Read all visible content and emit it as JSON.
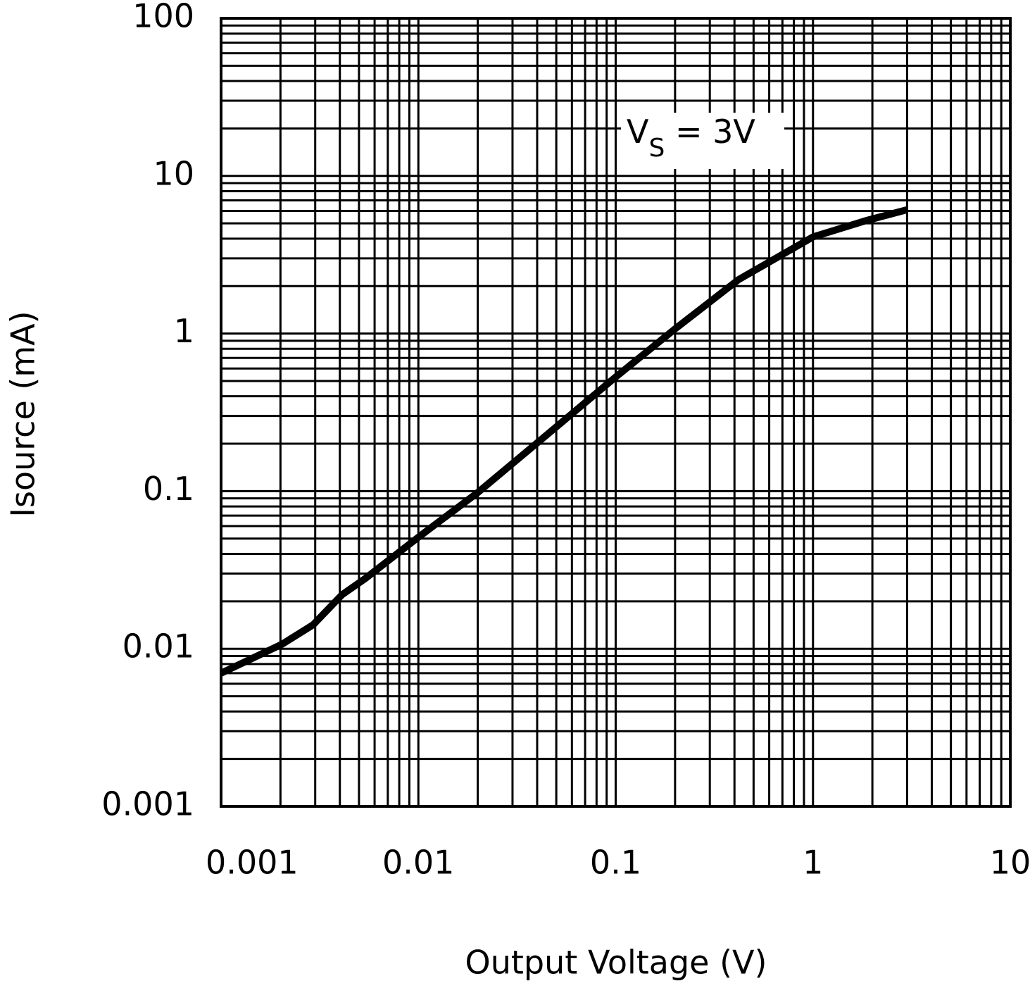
{
  "chart_data": {
    "type": "line",
    "x_label": "Output Voltage (V)",
    "y_label": "Isource (mA)",
    "annotation": {
      "main": "V",
      "sub": "S",
      "rest": " = 3V"
    },
    "log_x": true,
    "log_y": true,
    "grid": true,
    "minor_grid": true,
    "xlim": [
      0.001,
      10
    ],
    "xticks": [
      0.001,
      0.01,
      0.1,
      1,
      10
    ],
    "ylim": [
      0.001,
      100
    ],
    "yticks": [
      0.001,
      0.01,
      0.1,
      1,
      10,
      100
    ],
    "series": [
      {
        "name": "Isource",
        "color": "#000000",
        "x": [
          0.001,
          0.00204,
          0.00293,
          0.0041,
          0.0054,
          0.01,
          0.02,
          0.039,
          0.1,
          0.2,
          0.42,
          1,
          1.85,
          3
        ],
        "values": [
          0.007,
          0.0107,
          0.0142,
          0.022,
          0.028,
          0.051,
          0.098,
          0.197,
          0.53,
          1.07,
          2.2,
          4.1,
          5.2,
          6.1
        ]
      }
    ]
  }
}
